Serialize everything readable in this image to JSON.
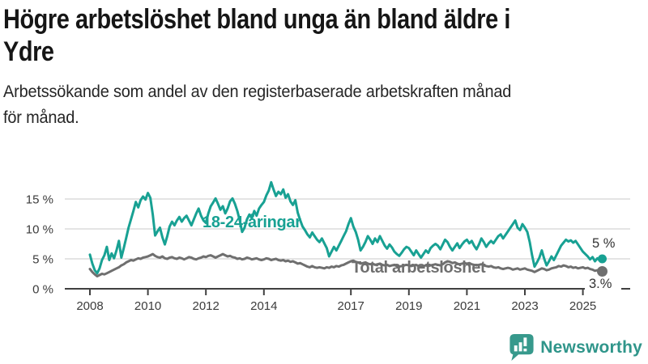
{
  "header": {
    "title_lines": [
      "Högre arbetslöshet bland unga än bland äldre i",
      "Ydre"
    ],
    "subtitle_lines": [
      "Arbetssökande som andel av den registerbaserade arbetskraften månad",
      "för månad."
    ]
  },
  "footer": {
    "brand": "Newsworthy",
    "brand_color": "#2f958a",
    "icon_color": "#37998c"
  },
  "chart_data": {
    "type": "line",
    "title": "Högre arbetslöshet bland unga än bland äldre i Ydre",
    "subtitle": "Arbetssökande som andel av den registerbaserade arbetskraften månad för månad.",
    "x_unit": "month",
    "x_start_year": 2008,
    "x_end_approx": 2025.67,
    "ylim": [
      0,
      18
    ],
    "grid": true,
    "yticks": [
      {
        "value": 15,
        "label": "15 %"
      },
      {
        "value": 10,
        "label": "10 %"
      },
      {
        "value": 5,
        "label": "5 %"
      },
      {
        "value": 0,
        "label": "0 %"
      }
    ],
    "xticks": [
      {
        "year": 2008,
        "label": "2008"
      },
      {
        "year": 2010,
        "label": "2010"
      },
      {
        "year": 2012,
        "label": "2012"
      },
      {
        "year": 2014,
        "label": "2014"
      },
      {
        "year": 2017,
        "label": "2017"
      },
      {
        "year": 2019,
        "label": "2019"
      },
      {
        "year": 2021,
        "label": "2021"
      },
      {
        "year": 2023,
        "label": "2023"
      },
      {
        "year": 2025,
        "label": "2025"
      }
    ],
    "series": [
      {
        "name": "Total arbetslöshet",
        "color": "#6f6f6f",
        "end_dot_radius": 6.5,
        "values": [
          3.3,
          2.8,
          2.4,
          2.1,
          2.3,
          2.5,
          2.4,
          2.6,
          2.8,
          3.0,
          3.2,
          3.4,
          3.6,
          3.9,
          4.1,
          4.4,
          4.6,
          4.8,
          4.7,
          4.9,
          5.1,
          5.0,
          5.2,
          5.3,
          5.4,
          5.6,
          5.8,
          5.5,
          5.3,
          5.2,
          5.4,
          5.1,
          5.0,
          5.2,
          5.3,
          5.1,
          5.0,
          5.2,
          5.1,
          4.9,
          5.1,
          5.3,
          5.2,
          5.0,
          4.9,
          5.1,
          5.2,
          5.4,
          5.3,
          5.5,
          5.6,
          5.4,
          5.2,
          5.4,
          5.6,
          5.8,
          5.6,
          5.4,
          5.5,
          5.3,
          5.2,
          5.0,
          5.1,
          4.9,
          5.0,
          5.2,
          5.1,
          4.9,
          5.0,
          5.1,
          4.9,
          4.8,
          4.9,
          5.1,
          5.0,
          4.8,
          4.9,
          5.0,
          4.8,
          4.7,
          4.8,
          4.6,
          4.7,
          4.5,
          4.6,
          4.4,
          4.2,
          4.3,
          4.1,
          3.9,
          3.7,
          3.6,
          3.8,
          3.6,
          3.5,
          3.6,
          3.5,
          3.4,
          3.6,
          3.5,
          3.7,
          3.6,
          3.8,
          3.7,
          3.9,
          4.0,
          4.2,
          4.4,
          4.6,
          4.7,
          4.5,
          4.4,
          4.2,
          4.3,
          4.4,
          4.2,
          4.1,
          4.2,
          4.0,
          4.1,
          4.2,
          4.0,
          3.9,
          4.0,
          3.8,
          3.9,
          4.0,
          3.8,
          3.7,
          3.8,
          3.9,
          4.0,
          3.9,
          3.8,
          3.9,
          4.0,
          3.8,
          3.7,
          3.8,
          3.9,
          3.8,
          3.9,
          4.0,
          4.1,
          4.0,
          3.9,
          4.1,
          4.4,
          4.6,
          4.5,
          4.3,
          4.4,
          4.2,
          4.1,
          4.2,
          4.3,
          4.2,
          4.3,
          4.1,
          4.0,
          3.9,
          4.0,
          4.1,
          3.9,
          3.8,
          3.7,
          3.8,
          3.6,
          3.5,
          3.6,
          3.4,
          3.3,
          3.4,
          3.5,
          3.4,
          3.2,
          3.3,
          3.4,
          3.2,
          3.3,
          3.4,
          3.2,
          3.1,
          3.0,
          2.8,
          3.0,
          3.2,
          3.4,
          3.3,
          3.1,
          3.2,
          3.4,
          3.5,
          3.6,
          3.8,
          3.7,
          3.9,
          3.8,
          3.6,
          3.7,
          3.5,
          3.6,
          3.4,
          3.5,
          3.6,
          3.4,
          3.5,
          3.3,
          3.2,
          3.0,
          3.1,
          3.0,
          2.9
        ]
      },
      {
        "name": "18-24-åringar",
        "color": "#18a193",
        "end_dot_radius": 5.5,
        "values": [
          5.7,
          4.2,
          3.1,
          2.6,
          3.4,
          4.8,
          5.6,
          7.0,
          4.8,
          5.9,
          5.1,
          6.4,
          8.0,
          5.2,
          6.8,
          8.5,
          10.2,
          11.6,
          13.0,
          14.5,
          13.6,
          14.8,
          15.4,
          14.9,
          16.0,
          15.2,
          12.4,
          8.9,
          9.6,
          10.2,
          8.6,
          7.4,
          8.8,
          10.4,
          11.2,
          10.6,
          11.4,
          12.0,
          11.2,
          11.8,
          12.2,
          11.4,
          10.6,
          11.6,
          12.6,
          13.4,
          12.2,
          11.4,
          11.0,
          12.6,
          13.8,
          14.4,
          15.1,
          14.2,
          13.2,
          13.8,
          12.6,
          13.4,
          14.6,
          15.1,
          14.2,
          13.0,
          11.4,
          9.5,
          10.2,
          11.6,
          12.4,
          11.8,
          13.0,
          12.2,
          13.4,
          14.0,
          14.5,
          15.6,
          16.4,
          17.8,
          16.6,
          15.5,
          16.2,
          15.8,
          16.6,
          15.2,
          15.8,
          14.6,
          14.0,
          14.8,
          12.7,
          11.5,
          10.4,
          9.8,
          9.1,
          8.6,
          9.4,
          8.8,
          8.2,
          7.8,
          8.4,
          7.6,
          6.8,
          5.4,
          6.2,
          7.0,
          6.4,
          7.2,
          8.0,
          8.8,
          9.6,
          10.8,
          11.8,
          10.4,
          9.5,
          8.2,
          6.4,
          7.0,
          7.8,
          8.8,
          8.2,
          7.5,
          8.4,
          7.8,
          8.8,
          8.0,
          7.2,
          6.7,
          7.4,
          6.9,
          6.2,
          5.8,
          5.5,
          6.0,
          6.6,
          7.0,
          6.8,
          6.2,
          5.6,
          6.4,
          5.8,
          5.2,
          5.8,
          6.4,
          6.0,
          6.8,
          7.2,
          7.5,
          7.2,
          6.6,
          7.4,
          8.2,
          7.8,
          7.0,
          6.4,
          7.0,
          7.6,
          6.8,
          7.4,
          7.9,
          8.2,
          7.6,
          8.0,
          7.2,
          6.6,
          7.4,
          8.4,
          7.8,
          7.0,
          7.6,
          8.0,
          7.6,
          8.2,
          8.8,
          9.1,
          8.4,
          9.0,
          9.6,
          10.2,
          10.8,
          11.4,
          10.2,
          9.8,
          10.8,
          10.2,
          9.5,
          7.8,
          5.6,
          3.7,
          4.4,
          5.2,
          6.4,
          5.0,
          3.9,
          4.6,
          5.4,
          4.8,
          5.6,
          6.4,
          7.2,
          7.7,
          8.2,
          7.9,
          8.1,
          7.7,
          8.0,
          7.4,
          6.8,
          6.2,
          5.8,
          5.4,
          4.9,
          5.3,
          4.6,
          5.1,
          4.7,
          5.0
        ]
      }
    ],
    "annotations": {
      "series_labels": [
        {
          "text": "18-24-åringar",
          "x": 250,
          "y": 281,
          "color": "#18a193"
        },
        {
          "text": "Total arbetslöshet",
          "x": 434,
          "y": 337,
          "color": "#6f6f6f"
        }
      ],
      "end_labels": [
        {
          "text": "5 %",
          "x": 731,
          "y": 306,
          "color": "#333333"
        },
        {
          "text": "3.%",
          "x": 727,
          "y": 356,
          "color": "#333333",
          "bg": [
            722,
            344,
            45,
            15
          ]
        }
      ]
    },
    "colors": {
      "gridline": "#dcdcdc",
      "axis": "#404040",
      "tick_label": "#3b3b3b"
    }
  }
}
